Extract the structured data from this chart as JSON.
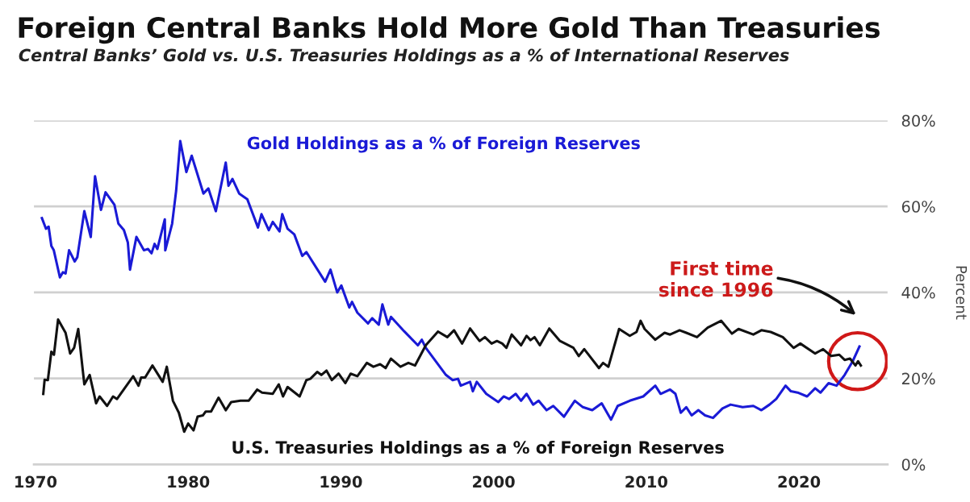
{
  "chart_data": {
    "type": "line",
    "title": "Foreign Central Banks Hold More Gold Than Treasuries",
    "subtitle": "Central Banks’ Gold vs. U.S. Treasuries Holdings as a % of International Reserves",
    "ylabel": "Percent",
    "xlim": [
      1969.9,
      2025.8
    ],
    "xticks": [
      1970,
      1980,
      1990,
      2000,
      2010,
      2020
    ],
    "ylim": [
      0,
      80
    ],
    "yticks": [
      {
        "value": 0,
        "label": "0%"
      },
      {
        "value": 20,
        "label": "20%"
      },
      {
        "value": 40,
        "label": "40%"
      },
      {
        "value": 60,
        "label": "60%"
      },
      {
        "value": 80,
        "label": "80%"
      }
    ],
    "grid": "y",
    "legend": false,
    "marker": "none",
    "line_style": "solid",
    "annotations": [
      "First time\nsince 1996"
    ],
    "series": [
      {
        "name": "Gold Holdings as a % of Foreign Reserves",
        "color": "#1a1ad6",
        "x": [
          1970.42,
          1970.69,
          1970.86,
          1971.04,
          1971.2,
          1971.6,
          1971.8,
          1971.97,
          1972.2,
          1972.57,
          1972.74,
          1973.2,
          1973.62,
          1973.9,
          1974.29,
          1974.59,
          1975.17,
          1975.43,
          1975.79,
          1976.05,
          1976.19,
          1976.61,
          1977.1,
          1977.37,
          1977.6,
          1977.8,
          1977.98,
          1978.47,
          1978.5,
          1978.95,
          1979.21,
          1979.48,
          1979.88,
          1980.23,
          1981.0,
          1981.32,
          1981.81,
          1982.46,
          1982.64,
          1982.9,
          1983.34,
          1983.87,
          1984.57,
          1984.8,
          1985.28,
          1985.54,
          1985.98,
          1986.16,
          1986.51,
          1986.95,
          1987.47,
          1987.74,
          1988.97,
          1989.32,
          1989.76,
          1990.03,
          1990.55,
          1990.73,
          1991.08,
          1991.78,
          1992.05,
          1992.48,
          1992.72,
          1993.1,
          1993.28,
          1994.16,
          1995.04,
          1995.3,
          1995.56,
          1996.88,
          1997.32,
          1997.67,
          1997.85,
          1998.46,
          1998.64,
          1998.9,
          1999.52,
          2000.31,
          2000.66,
          2001.01,
          2001.45,
          2001.8,
          2002.16,
          2002.59,
          2002.95,
          2003.47,
          2003.91,
          2004.61,
          2005.32,
          2005.85,
          2006.46,
          2007.08,
          2007.69,
          2008.13,
          2008.92,
          2009.8,
          2010.59,
          2010.94,
          2011.56,
          2011.91,
          2012.26,
          2012.62,
          2012.97,
          2013.41,
          2013.85,
          2014.37,
          2014.99,
          2015.52,
          2016.31,
          2017.01,
          2017.54,
          2018.07,
          2018.51,
          2019.12,
          2019.47,
          2019.91,
          2020.53,
          2021.06,
          2021.41,
          2021.94,
          2022.46,
          2022.99,
          2023.52,
          2023.96
        ],
        "values": [
          57.3,
          54.8,
          55.3,
          50.8,
          49.8,
          43.5,
          44.7,
          44.4,
          49.8,
          47.2,
          48.2,
          58.9,
          52.9,
          67.0,
          59.2,
          63.3,
          60.4,
          56.0,
          54.5,
          51.6,
          45.3,
          52.9,
          49.8,
          50.1,
          49.1,
          51.3,
          50.1,
          57.0,
          49.8,
          56.0,
          63.6,
          75.2,
          68.0,
          71.8,
          63.0,
          64.2,
          58.9,
          70.2,
          64.8,
          66.4,
          63.0,
          61.7,
          55.1,
          58.2,
          54.5,
          56.4,
          54.2,
          58.2,
          54.8,
          53.5,
          48.5,
          49.4,
          42.5,
          45.3,
          40.0,
          41.6,
          36.5,
          37.8,
          35.3,
          32.8,
          34.0,
          32.5,
          37.2,
          32.5,
          34.3,
          30.9,
          27.7,
          29.0,
          27.1,
          20.8,
          19.6,
          19.9,
          18.3,
          19.2,
          17.0,
          19.2,
          16.4,
          14.5,
          15.8,
          15.2,
          16.4,
          14.8,
          16.4,
          13.9,
          14.8,
          12.6,
          13.6,
          11.1,
          14.8,
          13.3,
          12.6,
          14.2,
          10.4,
          13.6,
          14.8,
          15.8,
          18.3,
          16.4,
          17.4,
          16.4,
          12.0,
          13.3,
          11.4,
          12.6,
          11.4,
          10.8,
          13.0,
          13.9,
          13.3,
          13.6,
          12.6,
          13.9,
          15.2,
          18.3,
          17.0,
          16.7,
          15.8,
          17.7,
          16.7,
          18.9,
          18.3,
          20.8,
          24.0,
          27.4
        ]
      },
      {
        "name": "U.S. Treasuries Holdings as a % of Foreign Reserves",
        "color": "#111111",
        "x": [
          1970.51,
          1970.6,
          1970.81,
          1971.04,
          1971.21,
          1971.48,
          1971.97,
          1972.27,
          1972.53,
          1972.8,
          1973.2,
          1973.55,
          1973.97,
          1974.2,
          1974.69,
          1975.08,
          1975.34,
          1976.4,
          1976.75,
          1976.92,
          1977.18,
          1977.66,
          1978.33,
          1978.6,
          1979.0,
          1979.39,
          1979.74,
          1980.0,
          1980.35,
          1980.62,
          1980.97,
          1981.15,
          1981.5,
          1981.99,
          1982.46,
          1982.82,
          1983.43,
          1983.96,
          1984.52,
          1984.84,
          1985.54,
          1985.93,
          1986.21,
          1986.51,
          1987.3,
          1987.74,
          1988.0,
          1988.45,
          1988.72,
          1989.06,
          1989.41,
          1989.85,
          1990.29,
          1990.64,
          1991.08,
          1991.7,
          1992.13,
          1992.57,
          1992.93,
          1993.28,
          1993.9,
          1994.42,
          1994.86,
          1995.56,
          1996.36,
          1996.97,
          1997.41,
          1997.94,
          1998.46,
          1999.08,
          1999.43,
          1999.87,
          2000.22,
          2000.57,
          2000.84,
          2001.19,
          2001.8,
          2002.16,
          2002.42,
          2002.68,
          2003.03,
          2003.65,
          2004.35,
          2005.23,
          2005.58,
          2005.94,
          2006.9,
          2007.17,
          2007.52,
          2008.22,
          2008.92,
          2009.36,
          2009.63,
          2009.89,
          2010.59,
          2011.2,
          2011.56,
          2012.18,
          2012.62,
          2013.32,
          2014.02,
          2014.9,
          2015.61,
          2016.04,
          2017.01,
          2017.54,
          2018.15,
          2018.94,
          2019.65,
          2020.09,
          2021.06,
          2021.58,
          2022.11,
          2022.64,
          2022.99,
          2023.34,
          2023.7,
          2023.87,
          2024.05
        ],
        "values": [
          16.4,
          19.7,
          19.6,
          26.2,
          25.5,
          33.7,
          30.6,
          25.8,
          27.1,
          31.5,
          18.6,
          20.8,
          14.2,
          15.8,
          13.6,
          15.8,
          15.2,
          20.5,
          18.3,
          20.2,
          20.2,
          23.0,
          19.2,
          22.7,
          14.8,
          12.0,
          7.6,
          9.5,
          7.9,
          11.1,
          11.4,
          12.3,
          12.3,
          15.5,
          12.6,
          14.5,
          14.8,
          14.8,
          17.4,
          16.7,
          16.4,
          18.6,
          15.8,
          18.0,
          15.8,
          19.6,
          19.9,
          21.5,
          20.8,
          21.8,
          19.6,
          21.1,
          18.9,
          21.1,
          20.5,
          23.6,
          22.7,
          23.3,
          22.4,
          24.6,
          22.7,
          23.6,
          23.0,
          27.7,
          30.9,
          29.6,
          31.2,
          28.1,
          31.6,
          28.7,
          29.6,
          28.1,
          28.7,
          28.1,
          27.1,
          30.2,
          27.7,
          29.9,
          28.9,
          29.6,
          27.7,
          31.6,
          28.7,
          27.1,
          25.2,
          26.8,
          22.4,
          23.6,
          22.7,
          31.5,
          29.9,
          30.8,
          33.4,
          31.5,
          29.0,
          30.6,
          30.2,
          31.2,
          30.6,
          29.6,
          31.8,
          33.4,
          30.4,
          31.5,
          30.2,
          31.2,
          30.8,
          29.6,
          27.1,
          28.1,
          25.8,
          26.8,
          25.2,
          25.5,
          24.3,
          24.6,
          23.0,
          24.0,
          23.0
        ]
      }
    ]
  }
}
